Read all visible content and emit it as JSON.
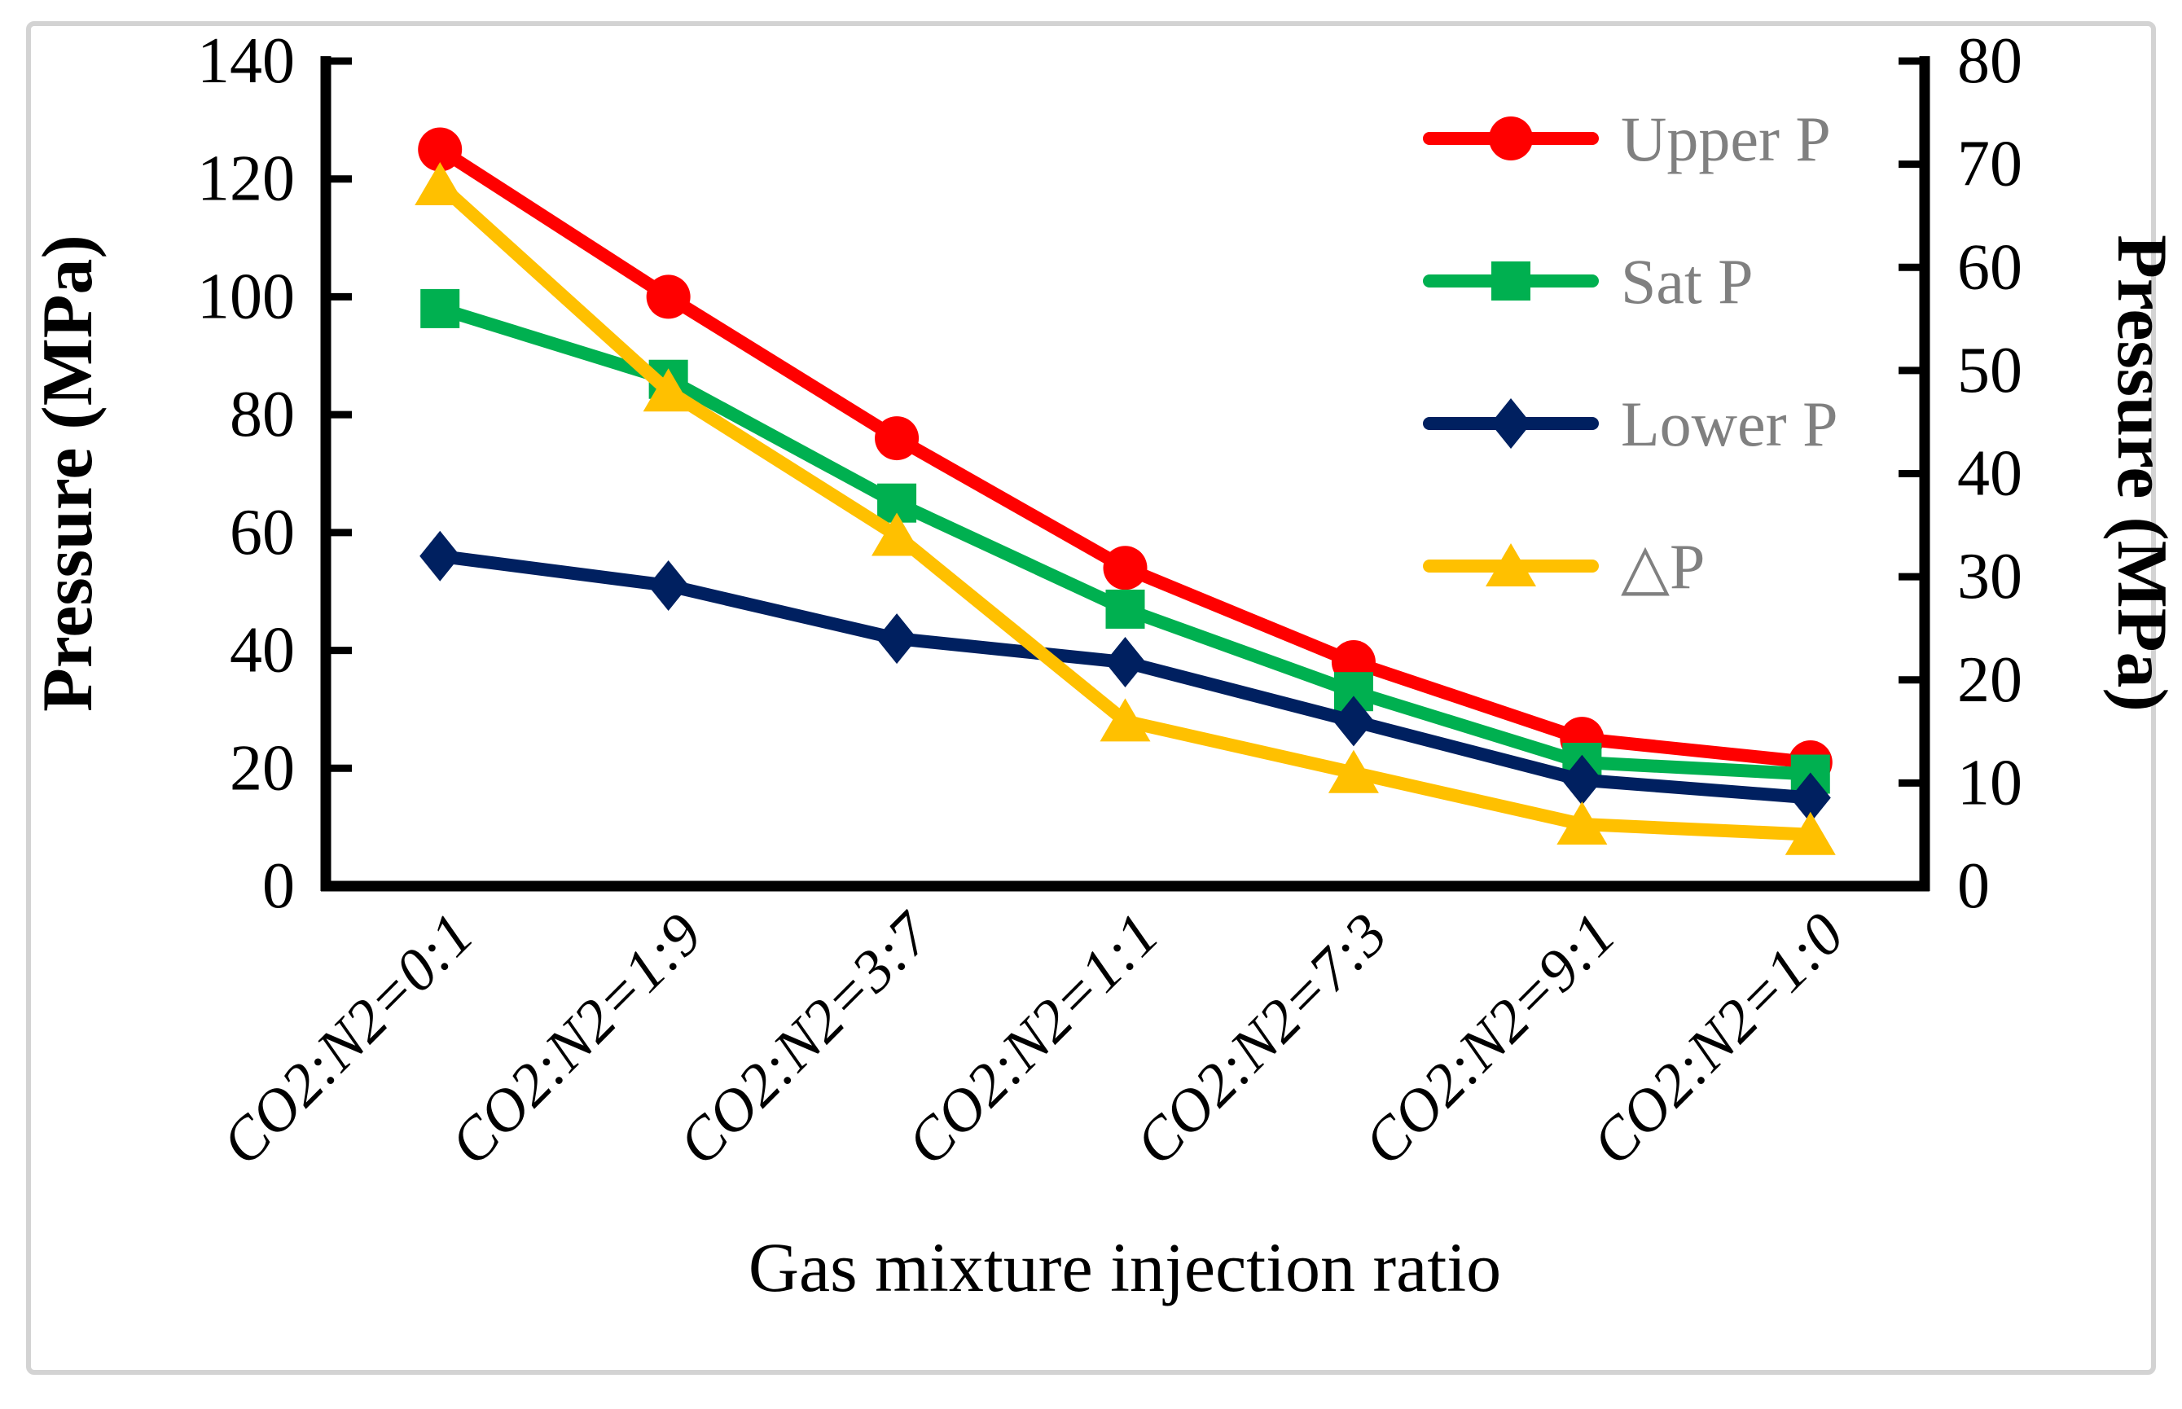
{
  "frame": {
    "background": "#FFFFFF",
    "border_color": "#D3D3D3"
  },
  "chart_data": {
    "type": "line",
    "title": "",
    "grid": false,
    "legend_position": "top-right-inside",
    "x_axis": {
      "title": "Gas mixture injection ratio",
      "categories": [
        "CO2:N2=0:1",
        "CO2:N2=1:9",
        "CO2:N2=3:7",
        "CO2:N2=1:1",
        "CO2:N2=7:3",
        "CO2:N2=9:1",
        "CO2:N2=1:0"
      ]
    },
    "left_axis": {
      "title": "Pressure (MPa)",
      "range": [
        0,
        140
      ],
      "ticks": [
        140,
        120,
        100,
        80,
        60,
        40,
        20,
        0
      ]
    },
    "right_axis": {
      "title": "Pressure (MPa)",
      "range": [
        0,
        80
      ],
      "ticks": [
        80,
        70,
        60,
        50,
        40,
        30,
        20,
        10,
        0
      ]
    },
    "series": [
      {
        "key": "upper-p",
        "label": "Upper P",
        "color": "#FF0000",
        "marker": "circle",
        "axis": "left",
        "values": [
          125,
          100,
          76,
          54,
          38,
          25,
          21
        ]
      },
      {
        "key": "sat-p",
        "label": "Sat P",
        "color": "#00B050",
        "marker": "square",
        "axis": "left",
        "values": [
          98,
          86,
          65,
          47,
          33,
          21,
          19
        ]
      },
      {
        "key": "lower-p",
        "label": "Lower P",
        "color": "#002060",
        "marker": "diamond",
        "axis": "left",
        "values": [
          56,
          51,
          42,
          38,
          28,
          18,
          15
        ]
      },
      {
        "key": "delta-p",
        "label": "△P",
        "color": "#FFC000",
        "marker": "triangle",
        "axis": "right",
        "values": [
          68,
          48,
          34,
          16,
          11,
          6,
          5
        ]
      }
    ]
  }
}
